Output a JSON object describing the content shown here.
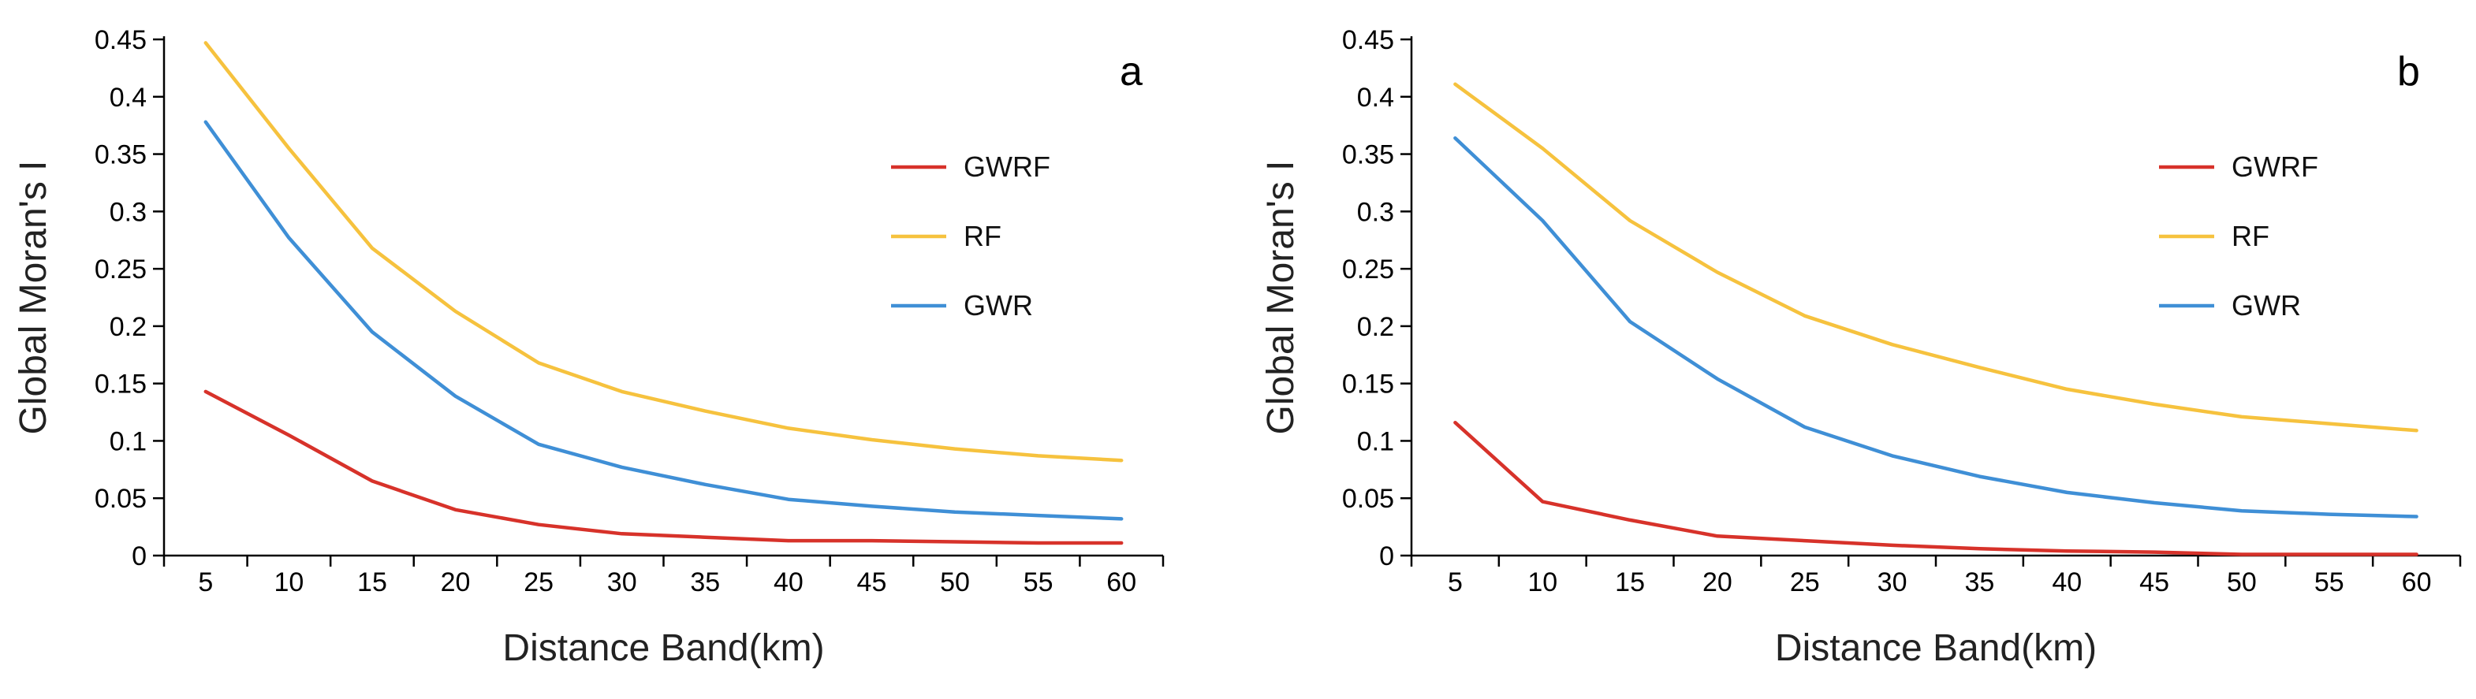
{
  "figure": {
    "colors": {
      "GWRF": "#d7322a",
      "RF": "#f6c23e",
      "GWR": "#3f8fd6",
      "axis": "#000000"
    }
  },
  "chart_data": [
    {
      "type": "line",
      "panel_label": "a",
      "x": [
        5,
        10,
        15,
        20,
        25,
        30,
        35,
        40,
        45,
        50,
        55,
        60
      ],
      "x_ticks": [
        "5",
        "10",
        "15",
        "20",
        "25",
        "30",
        "35",
        "40",
        "45",
        "50",
        "55",
        "60"
      ],
      "y_ticks": [
        "0",
        "0.05",
        "0.1",
        "0.15",
        "0.2",
        "0.25",
        "0.3",
        "0.35",
        "0.4",
        "0.45"
      ],
      "xlabel": "Distance Band(km)",
      "ylabel": "Global Moran's I",
      "ylim": [
        0,
        0.45
      ],
      "legend_position": "middle-right",
      "series": [
        {
          "name": "GWRF",
          "values": [
            0.143,
            0.105,
            0.065,
            0.04,
            0.027,
            0.019,
            0.016,
            0.013,
            0.013,
            0.012,
            0.011,
            0.011
          ]
        },
        {
          "name": "RF",
          "values": [
            0.447,
            0.355,
            0.268,
            0.213,
            0.168,
            0.143,
            0.126,
            0.111,
            0.101,
            0.093,
            0.087,
            0.083
          ]
        },
        {
          "name": "GWR",
          "values": [
            0.378,
            0.277,
            0.195,
            0.139,
            0.097,
            0.077,
            0.062,
            0.049,
            0.043,
            0.038,
            0.035,
            0.032
          ]
        }
      ]
    },
    {
      "type": "line",
      "panel_label": "b",
      "x": [
        5,
        10,
        15,
        20,
        25,
        30,
        35,
        40,
        45,
        50,
        55,
        60
      ],
      "x_ticks": [
        "5",
        "10",
        "15",
        "20",
        "25",
        "30",
        "35",
        "40",
        "45",
        "50",
        "55",
        "60"
      ],
      "y_ticks": [
        "0",
        "0.05",
        "0.1",
        "0.15",
        "0.2",
        "0.25",
        "0.3",
        "0.35",
        "0.4",
        "0.45"
      ],
      "xlabel": "Distance Band(km)",
      "ylabel": "Global Moran's I",
      "ylim": [
        0,
        0.45
      ],
      "legend_position": "middle-right",
      "series": [
        {
          "name": "GWRF",
          "values": [
            0.116,
            0.047,
            0.031,
            0.017,
            0.013,
            0.009,
            0.006,
            0.004,
            0.003,
            0.001,
            0.001,
            0.001
          ]
        },
        {
          "name": "RF",
          "values": [
            0.411,
            0.355,
            0.292,
            0.247,
            0.209,
            0.184,
            0.164,
            0.145,
            0.132,
            0.121,
            0.115,
            0.109
          ]
        },
        {
          "name": "GWR",
          "values": [
            0.364,
            0.292,
            0.204,
            0.154,
            0.112,
            0.087,
            0.069,
            0.055,
            0.046,
            0.039,
            0.036,
            0.034
          ]
        }
      ]
    }
  ]
}
